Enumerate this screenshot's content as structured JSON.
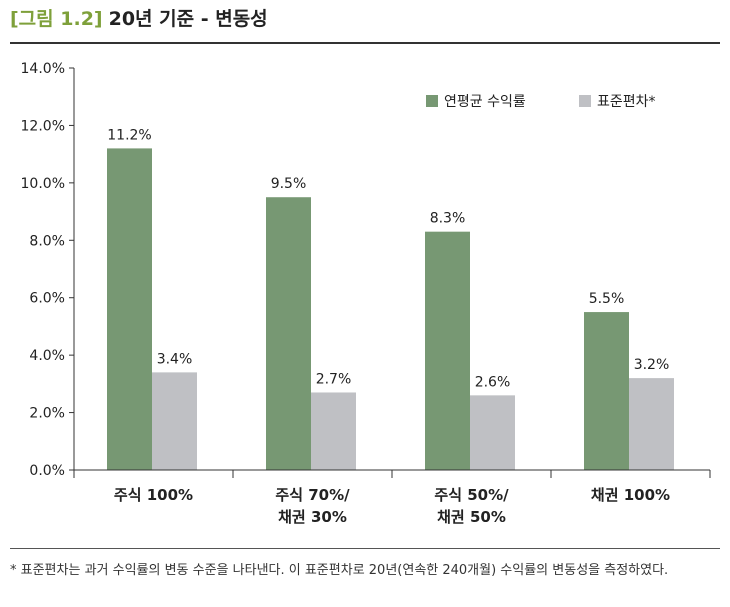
{
  "figure": {
    "label": "[그림 1.2]",
    "title": "20년 기준 - 변동성"
  },
  "footnote": "* 표준편차는 과거 수익률의 변동 수준을 나타낸다. 이 표준편차로 20년(연속한 240개월) 수익률의 변동성을 측정하였다.",
  "colors": {
    "series_return": "#779873",
    "series_stdev": "#bfc0c4",
    "axis": "#333333",
    "title_prefix": "#7ea03a"
  },
  "chart_data": {
    "type": "bar",
    "categories": [
      [
        "주식 100%"
      ],
      [
        "주식 70%/",
        "채권 30%"
      ],
      [
        "주식 50%/",
        "채권 50%"
      ],
      [
        "채권 100%"
      ]
    ],
    "series": [
      {
        "name": "연평균 수익률",
        "values": [
          11.2,
          9.5,
          8.3,
          5.5
        ],
        "labels": [
          "11.2%",
          "9.5%",
          "8.3%",
          "5.5%"
        ]
      },
      {
        "name": "표준편차*",
        "values": [
          3.4,
          2.7,
          2.6,
          3.2
        ],
        "labels": [
          "3.4%",
          "2.7%",
          "2.6%",
          "3.2%"
        ]
      }
    ],
    "ylim": [
      0,
      14
    ],
    "yticks": [
      0,
      2,
      4,
      6,
      8,
      10,
      12,
      14
    ],
    "ytick_labels": [
      "0.0%",
      "2.0%",
      "4.0%",
      "6.0%",
      "8.0%",
      "10.0%",
      "12.0%",
      "14.0%"
    ],
    "xlabel": "",
    "ylabel": "",
    "grid": false,
    "legend_position": "top-right"
  }
}
